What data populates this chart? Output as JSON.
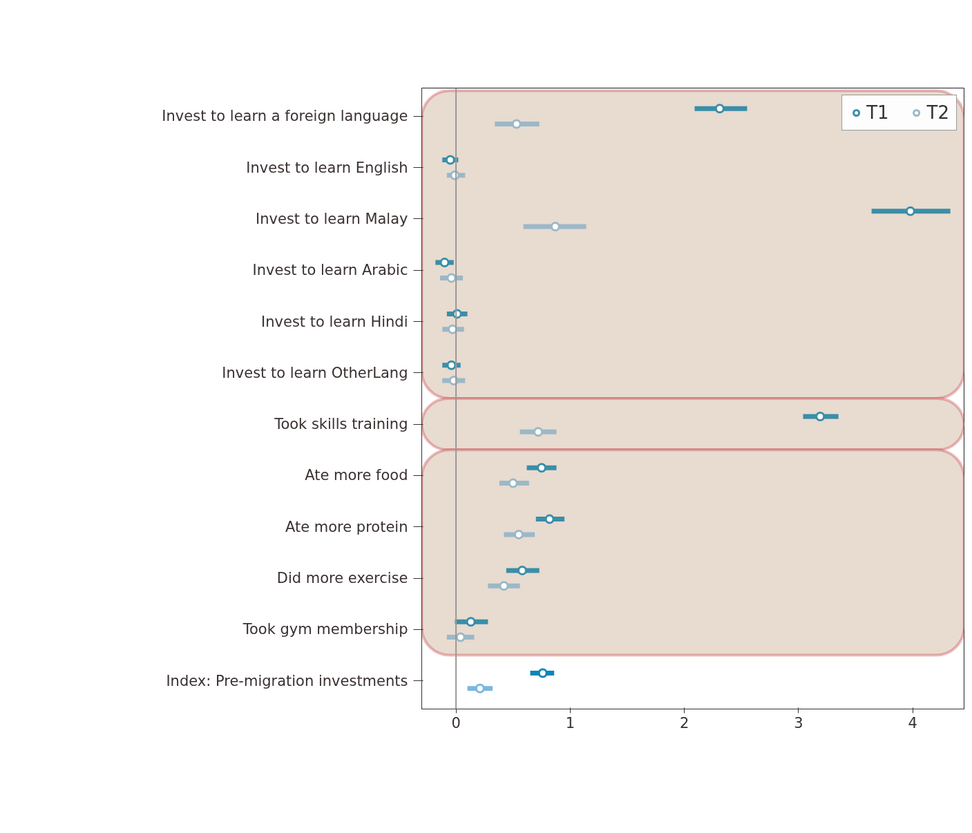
{
  "chart_data": {
    "type": "scatter",
    "orientation": "horizontal",
    "categories": [
      "Invest to learn a foreign language",
      "Invest to learn English",
      "Invest to learn Malay",
      "Invest to learn Arabic",
      "Invest to learn Hindi",
      "Invest to learn OtherLang",
      "Took skills training",
      "Ate more food",
      "Ate more protein",
      "Did more exercise",
      "Took gym membership",
      "Index: Pre-migration investments"
    ],
    "series": [
      {
        "name": "T1",
        "color": "#3a8ea8",
        "colors": [
          null,
          null,
          null,
          null,
          null,
          null,
          null,
          null,
          null,
          null,
          null,
          "#0a86b8"
        ],
        "values": [
          2.31,
          -0.05,
          3.98,
          -0.1,
          0.01,
          -0.04,
          3.19,
          0.75,
          0.82,
          0.58,
          0.13,
          0.76
        ],
        "errors": [
          [
            2.09,
            2.55
          ],
          [
            -0.12,
            0.02
          ],
          [
            3.64,
            4.33
          ],
          [
            -0.18,
            -0.02
          ],
          [
            -0.08,
            0.1
          ],
          [
            -0.12,
            0.04
          ],
          [
            3.04,
            3.35
          ],
          [
            0.62,
            0.88
          ],
          [
            0.7,
            0.95
          ],
          [
            0.44,
            0.73
          ],
          [
            -0.01,
            0.28
          ],
          [
            0.65,
            0.86
          ]
        ]
      },
      {
        "name": "T2",
        "color": "#9bb8c8",
        "colors": [
          null,
          null,
          null,
          null,
          null,
          null,
          null,
          null,
          null,
          null,
          null,
          "#7ab8e0"
        ],
        "values": [
          0.53,
          -0.01,
          0.87,
          -0.04,
          -0.03,
          -0.02,
          0.72,
          0.5,
          0.55,
          0.42,
          0.04,
          0.21
        ],
        "errors": [
          [
            0.34,
            0.73
          ],
          [
            -0.08,
            0.08
          ],
          [
            0.59,
            1.14
          ],
          [
            -0.14,
            0.06
          ],
          [
            -0.12,
            0.07
          ],
          [
            -0.12,
            0.08
          ],
          [
            0.56,
            0.88
          ],
          [
            0.38,
            0.64
          ],
          [
            0.42,
            0.69
          ],
          [
            0.28,
            0.56
          ],
          [
            -0.08,
            0.16
          ],
          [
            0.1,
            0.32
          ]
        ]
      }
    ],
    "xlim": [
      -0.3,
      4.45
    ],
    "xticks": [
      0,
      1,
      2,
      3,
      4
    ],
    "ref_lines": [
      {
        "axis": "x",
        "value": 0,
        "color": "#999999"
      }
    ],
    "bands": [
      {
        "axis": "y",
        "from": "Invest to learn a foreign language",
        "to": "Invest to learn OtherLang",
        "color": "#e8dbd0"
      },
      {
        "axis": "y",
        "from": "Took skills training",
        "to": "Took skills training",
        "color": "#e8dbd0"
      },
      {
        "axis": "y",
        "from": "Ate more food",
        "to": "Took gym membership",
        "color": "#e8dbd0"
      }
    ],
    "marker": "circle",
    "grid": false,
    "legend": "top right"
  }
}
